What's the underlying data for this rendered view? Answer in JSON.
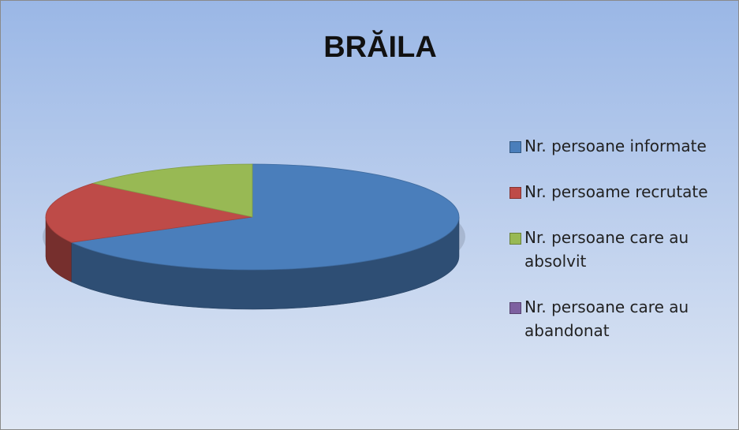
{
  "chart_data": {
    "type": "pie3d",
    "title": "BRĂILA",
    "categories": [
      "Nr. persoane informate",
      "Nr. persoame recrutate",
      "Nr. persoane care au absolvit",
      "Nr. persoane care au abandonat"
    ],
    "values": [
      67,
      19,
      14,
      0
    ],
    "colors": [
      "#4a7ebb",
      "#be4b48",
      "#98b954",
      "#7d60a0"
    ],
    "legend": "right"
  }
}
